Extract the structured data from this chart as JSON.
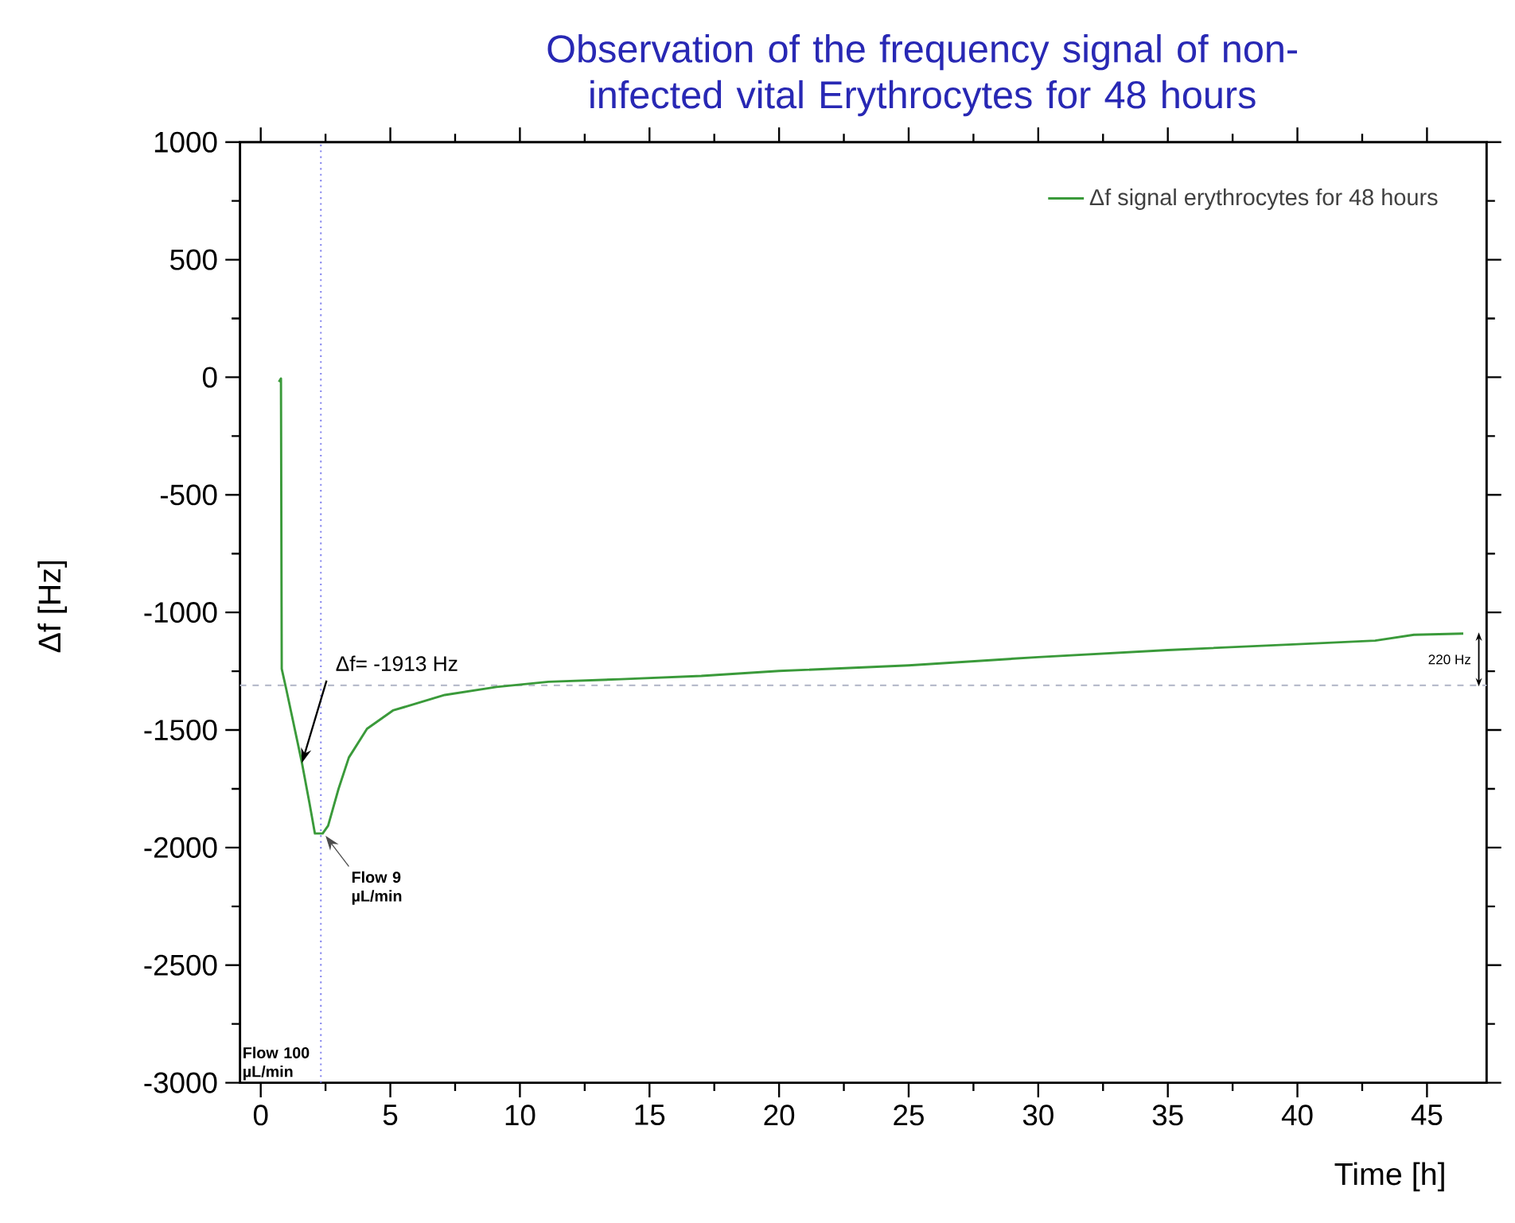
{
  "chart_data": {
    "type": "line",
    "title": "Observation of the frequency signal of non-infected vital Erythrocytes for 48 hours",
    "xlabel": "Time [h]",
    "ylabel": "Δf [Hz]",
    "xlim": [
      -0.8,
      47.3
    ],
    "ylim": [
      -3000,
      1000
    ],
    "xticks": [
      0,
      5,
      10,
      15,
      20,
      25,
      30,
      35,
      40,
      45
    ],
    "yticks": [
      -3000,
      -2500,
      -2000,
      -1500,
      -1000,
      -500,
      0,
      500,
      1000
    ],
    "legend": "top right",
    "series": [
      {
        "name": "Δf signal erythrocytes for 48 hours",
        "color": "#3a9a3a",
        "x": [
          0.7,
          0.78,
          0.81,
          0.99,
          1.59,
          1.89,
          2.09,
          2.39,
          2.6,
          3.0,
          3.4,
          4.1,
          5.1,
          7.1,
          9.1,
          11.1,
          13.9,
          17,
          20,
          25,
          30,
          35,
          40,
          43,
          44.5,
          46.4
        ],
        "values": [
          -20,
          -5,
          -1240,
          -1329,
          -1640,
          -1817,
          -1940,
          -1940,
          -1907,
          -1751,
          -1617,
          -1495,
          -1417,
          -1351,
          -1317,
          -1295,
          -1284,
          -1270,
          -1249,
          -1225,
          -1190,
          -1160,
          -1135,
          -1120,
          -1095,
          -1090
        ]
      }
    ],
    "ref_lines": [
      {
        "axis": "x",
        "value": 2.32,
        "label": "Flow 100 µL/min",
        "color": "#8888ee",
        "line_style": "dotted"
      },
      {
        "axis": "y",
        "value": -1310,
        "color": "#b8bccc",
        "line_style": "dashed"
      }
    ],
    "annotations": [
      {
        "text": "Δf= -1913 Hz",
        "x": 1.59,
        "y": -1640
      },
      {
        "text": "Flow 9 µL/min",
        "x": 2.4,
        "y": -1940
      },
      "220 Hz"
    ]
  }
}
